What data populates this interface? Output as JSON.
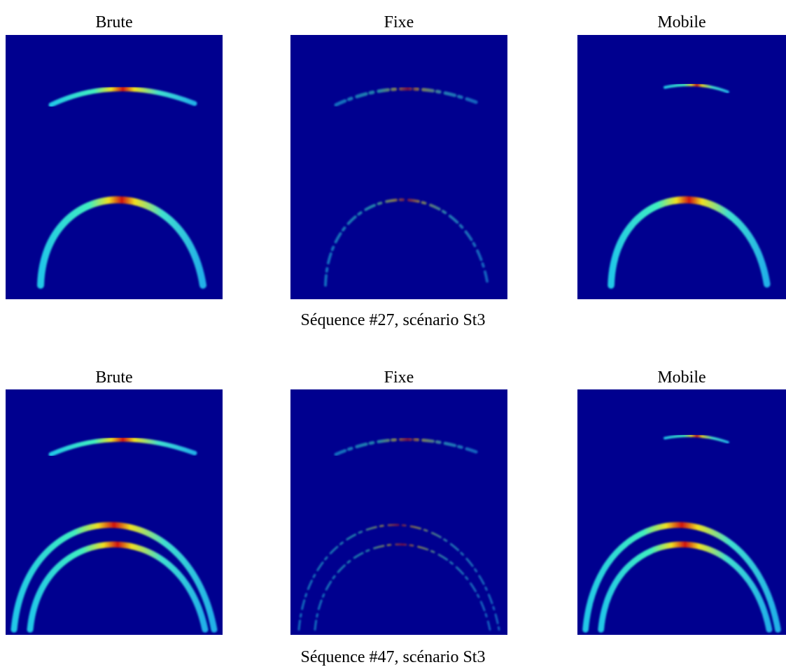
{
  "figures": [
    {
      "panels": [
        {
          "title": "Brute"
        },
        {
          "title": "Fixe"
        },
        {
          "title": "Mobile"
        }
      ],
      "caption": "Séquence #27, scénario St3"
    },
    {
      "panels": [
        {
          "title": "Brute"
        },
        {
          "title": "Fixe"
        },
        {
          "title": "Mobile"
        }
      ],
      "caption": "Séquence #47, scénario St3"
    }
  ]
}
